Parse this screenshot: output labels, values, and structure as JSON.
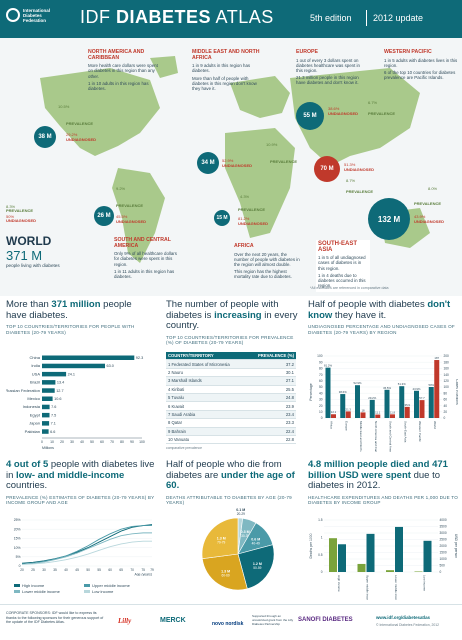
{
  "header": {
    "logo_text": "International Diabetes Federation",
    "title_light": "IDF",
    "title_bold": "DIABETES",
    "title_rest": "ATLAS",
    "edition": "5th edition",
    "update": "2012 update"
  },
  "colors": {
    "teal": "#0e6a78",
    "green": "#7aa33b",
    "red": "#c0392b",
    "dark": "#1f3a4d",
    "lightteal": "#7fb8c2"
  },
  "map": {
    "regions": [
      {
        "id": "nac",
        "title": "NORTH AMERICA AND CARIBBEAN",
        "lines": [
          "More health care dollars were spent on diabetes in this region than any other.",
          "1 in 10 adults in this region has diabetes."
        ],
        "cases": "38 M",
        "prevalence_label": "PREVALENCE",
        "prevalence": "10.5%",
        "undiag_label": "UNDIAGNOSED",
        "undiag": "29.2%"
      },
      {
        "id": "mena",
        "title": "MIDDLE EAST AND NORTH AFRICA",
        "lines": [
          "1 in 9 adults in this region has diabetes.",
          "More than half of people with diabetes in this region don't know they have it."
        ],
        "cases": "34 M",
        "prevalence_label": "PREVALENCE",
        "prevalence": "10.9%",
        "undiag_label": "UNDIAGNOSED",
        "undiag": "52.9%"
      },
      {
        "id": "eur",
        "title": "EUROPE",
        "lines": [
          "1 out of every 3 dollars spent on diabetes healthcare was spent in this region.",
          "21.3 million people in this region have diabetes and don't know it."
        ],
        "cases": "55 M",
        "prevalence_label": "PREVALENCE",
        "prevalence": "6.7%",
        "undiag_label": "UNDIAGNOSED",
        "undiag": "38.6%"
      },
      {
        "id": "wp",
        "title": "WESTERN PACIFIC",
        "lines": [
          "1 in 5 adults with diabetes lives in this region.",
          "6 of the top 10 countries for diabetes prevalence are Pacific Islands."
        ],
        "cases": "132 M",
        "prevalence_label": "PREVALENCE",
        "prevalence": "8.0%",
        "undiag_label": "UNDIAGNOSED",
        "undiag": "43.9%"
      },
      {
        "id": "sacа",
        "title": "SOUTH AND CENTRAL AMERICA",
        "lines": [
          "Only 9% of all healthcare dollars for diabetes were spent in this region.",
          "1 in 11 adults in this region has diabetes."
        ],
        "cases": "26 M",
        "prevalence_label": "PREVALENCE",
        "prevalence": "9.2%",
        "undiag_label": "UNDIAGNOSED",
        "undiag": "45.5%"
      },
      {
        "id": "afr",
        "title": "AFRICA",
        "lines": [
          "Over the next 20 years, the number of people with diabetes in the region will almost double.",
          "This region has the highest mortality rate due to diabetes."
        ],
        "cases": "15 M",
        "prevalence_label": "PREVALENCE",
        "prevalence": "4.3%",
        "undiag_label": "UNDIAGNOSED",
        "undiag": "81.2%"
      },
      {
        "id": "sea",
        "title": "SOUTH-EAST ASIA",
        "lines": [
          "1 in 5 of all undiagnosed cases of diabetes is in this region.",
          "1 in 4 deaths due to diabetes occurred in this region."
        ],
        "cases": "70 M",
        "prevalence_label": "PREVALENCE",
        "prevalence": "8.7%",
        "undiag_label": "UNDIAGNOSED",
        "undiag": "51.3%"
      }
    ],
    "world": {
      "title": "WORLD",
      "number": "371 M",
      "sub": "people living with diabetes",
      "prevalence_label": "PREVALENCE",
      "prevalence": "8.3%",
      "undiag_label": "UNDIAGNOSED",
      "undiag": "50%"
    },
    "footnote": "*All estimates are referenced in comparative data"
  },
  "section1": {
    "headline_a": "More than",
    "headline_b": "371 million",
    "headline_c": "people have diabetes.",
    "caption": "TOP 10 COUNTRIES/TERRITORIES FOR PEOPLE WITH DIABETES (20-79 YEARS)",
    "axis_unit": "Millions"
  },
  "section2": {
    "headline_a": "The number of people with diabetes is",
    "headline_b": "increasing",
    "headline_c": "in every country.",
    "caption": "TOP 10 COUNTRIES/TERRITORIES FOR PREVALENCE (%) OF DIABETES (20-79 YEARS)",
    "col1": "COUNTRY/TERRITORY",
    "col2": "PREVALENCE (%)",
    "note": "comparative prevalence"
  },
  "section3": {
    "headline_a": "Half of people with diabetes",
    "headline_b": "don't know",
    "headline_c": "they have it.",
    "caption": "UNDIAGNOSED PERCENTAGE AND UNDIAGNOSED CASES OF DIABETES (20-79 YEARS) BY REGION",
    "ylabel_left": "Percentage",
    "ylabel_right": "Cases in Millions"
  },
  "section4": {
    "headline_a": "4 out of 5",
    "headline_b": "people with diabetes live in",
    "headline_c": "low- and middle-income",
    "headline_d": "countries.",
    "caption": "PREVALENCE (%) ESTIMATES OF DIABETES (20-79 YEARS) BY INCOME GROUP AND AGE",
    "xlabel": "Age (years)"
  },
  "section5": {
    "headline_a": "Half of people who die",
    "headline_b": "from diabetes are",
    "headline_c": "under the age of 60.",
    "caption": "DEATHS ATTRIBUTABLE TO DIABETES BY AGE (20-79 YEARS)"
  },
  "section6": {
    "headline_a": "4.8 million people died and",
    "headline_b": "471 billion USD were spent",
    "headline_c": "due to diabetes in 2012.",
    "caption": "HEALTHCARE EXPENDITURES AND DEATHS PER 1,000 DUE TO DIABETES BY INCOME GROUP",
    "ylabel_left": "Deaths per 1000",
    "ylabel_right": "USD per person"
  },
  "footer": {
    "text": "CORPORATE SPONSORS: IDF would like to express its thanks to the following sponsors for their generous support of the update of the IDF Diabetes Atlas.",
    "sponsor1": "Lilly",
    "sponsor2": "MERCK",
    "sponsor3": "novo nordisk",
    "sponsor4": "SANOFI DIABETES",
    "supported": "Supported through an unrestricted grant from the Lilly Diabetes Partnership",
    "url": "www.idf.org/diabetesatlas",
    "copyright": "© International Diabetes Federation, 2012"
  },
  "chart_data": [
    {
      "type": "bar",
      "title": "TOP 10 COUNTRIES/TERRITORIES FOR PEOPLE WITH DIABETES (20-79 YEARS)",
      "orientation": "horizontal",
      "categories": [
        "China",
        "India",
        "USA",
        "Brazil",
        "Russian Federation",
        "Mexico",
        "Indonesia",
        "Egypt",
        "Japan",
        "Pakistan"
      ],
      "values": [
        92.3,
        63.0,
        24.1,
        13.4,
        12.7,
        10.6,
        7.6,
        7.5,
        7.1,
        6.6
      ],
      "xlabel": "Millions",
      "xlim": [
        0,
        100
      ],
      "xticks": [
        0,
        10,
        20,
        30,
        40,
        50,
        60,
        70,
        80,
        90,
        100
      ]
    },
    {
      "type": "table",
      "title": "TOP 10 COUNTRIES/TERRITORIES FOR PREVALENCE (%) OF DIABETES (20-79 YEARS)",
      "columns": [
        "COUNTRY/TERRITORY",
        "PREVALENCE (%)"
      ],
      "rows": [
        [
          "1  Federated States of Micronesia",
          "37.2"
        ],
        [
          "2  Nauru",
          "30.1"
        ],
        [
          "3  Marshall Islands",
          "27.1"
        ],
        [
          "4  Kiribati",
          "25.5"
        ],
        [
          "5  Tuvalu",
          "24.8"
        ],
        [
          "6  Kuwait",
          "23.9"
        ],
        [
          "7  Saudi Arabia",
          "23.4"
        ],
        [
          "8  Qatar",
          "23.3"
        ],
        [
          "9  Bahrain",
          "22.4"
        ],
        [
          "10 Vanuatu",
          "22.8"
        ]
      ]
    },
    {
      "type": "bar",
      "title": "UNDIAGNOSED PERCENTAGE AND UNDIAGNOSED CASES OF DIABETES (20-79 YEARS) BY REGION",
      "categories": [
        "Africa",
        "Europe",
        "Middle East and North Africa",
        "North America and Caribbean",
        "South and Central America",
        "South-East Asia",
        "Western Pacific",
        "World"
      ],
      "series": [
        {
          "name": "Percentage",
          "values": [
            81.2,
            38.6,
            52.9,
            29.2,
            45.5,
            51.3,
            43.9,
            50.0
          ]
        },
        {
          "name": "Cases in Millions",
          "values": [
            12.1,
            21.3,
            18.0,
            11.1,
            11.8,
            35.9,
            57.7,
            187.0
          ]
        }
      ],
      "ylim_left": [
        0,
        100
      ],
      "yticks_left": [
        0,
        10,
        20,
        30,
        40,
        50,
        60,
        70,
        80,
        90,
        100
      ],
      "ylim_right": [
        0,
        200
      ],
      "yticks_right": [
        0,
        20,
        40,
        60,
        80,
        100,
        120,
        140,
        160,
        180,
        200
      ]
    },
    {
      "type": "line",
      "title": "PREVALENCE (%) ESTIMATES OF DIABETES (20-79 YEARS) BY INCOME GROUP AND AGE",
      "x": [
        20,
        25,
        30,
        35,
        40,
        45,
        50,
        55,
        60,
        65,
        70,
        75,
        79
      ],
      "series": [
        {
          "name": "High income",
          "values": [
            1.5,
            2.0,
            2.8,
            4.0,
            5.5,
            7.5,
            10.0,
            13.0,
            16.0,
            19.0,
            21.0,
            22.0,
            22.5
          ]
        },
        {
          "name": "Upper middle income",
          "values": [
            1.0,
            1.5,
            2.5,
            3.8,
            5.5,
            8.0,
            11.0,
            14.5,
            17.5,
            20.0,
            21.5,
            22.0,
            22.0
          ]
        },
        {
          "name": "Lower middle income",
          "values": [
            1.0,
            1.4,
            2.2,
            3.5,
            5.0,
            7.0,
            9.5,
            12.0,
            14.5,
            16.5,
            17.5,
            18.0,
            18.0
          ]
        },
        {
          "name": "Low income",
          "values": [
            0.8,
            1.1,
            1.6,
            2.4,
            3.4,
            4.8,
            6.5,
            8.5,
            10.5,
            12.0,
            13.0,
            13.5,
            13.5
          ]
        }
      ],
      "xlabel": "Age (years)",
      "ylim": [
        0,
        25
      ],
      "yticks": [
        "0",
        "5%",
        "10%",
        "15%",
        "20%",
        "25%"
      ],
      "xticks": [
        20,
        25,
        30,
        35,
        40,
        45,
        50,
        55,
        60,
        65,
        70,
        75,
        79
      ]
    },
    {
      "type": "pie",
      "title": "DEATHS ATTRIBUTABLE TO DIABETES BY AGE (20-79 YEARS)",
      "categories": [
        "20-29",
        "30-39",
        "40-49",
        "50-59",
        "60-69",
        "70-79"
      ],
      "values": [
        0.1,
        0.3,
        0.6,
        1.2,
        1.3,
        1.3
      ],
      "labels": [
        "0.1 M",
        "0.3 M",
        "0.6 M",
        "1.2 M",
        "1.3 M",
        "1.3 M"
      ]
    },
    {
      "type": "bar",
      "title": "HEALTHCARE EXPENDITURES AND DEATHS PER 1,000 DUE TO DIABETES BY INCOME GROUP",
      "categories": [
        "High income",
        "Upper middle income",
        "Lower middle income",
        "Low income"
      ],
      "series": [
        {
          "name": "Deaths per 1000",
          "values": [
            0.8,
            1.1,
            1.3,
            0.9
          ]
        },
        {
          "name": "USD per person",
          "values": [
            2600,
            620,
            140,
            40
          ]
        }
      ],
      "ylim_left": [
        0,
        1.5
      ],
      "yticks_left": [
        0,
        0.5,
        1.0,
        1.5
      ],
      "ylim_right": [
        0,
        4000
      ],
      "yticks_right": [
        0,
        500,
        1000,
        1500,
        2000,
        2500,
        3000,
        3500,
        4000
      ]
    }
  ]
}
